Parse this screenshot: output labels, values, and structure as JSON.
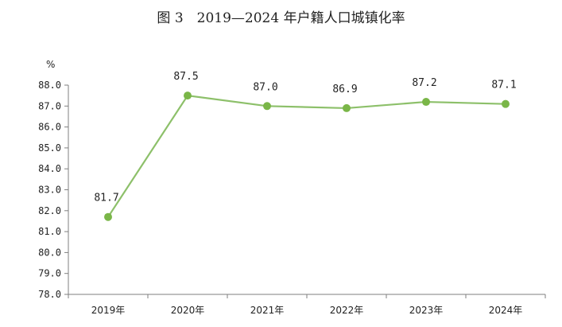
{
  "chart_data": {
    "type": "line",
    "title": "图 3　2019—2024 年户籍人口城镇化率",
    "y_unit": "%",
    "categories": [
      "2019年",
      "2020年",
      "2021年",
      "2022年",
      "2023年",
      "2024年"
    ],
    "series": [
      {
        "values": [
          81.7,
          87.5,
          87.0,
          86.9,
          87.2,
          87.1
        ]
      }
    ],
    "data_labels": [
      "81.7",
      "87.5",
      "87.0",
      "86.9",
      "87.2",
      "87.1"
    ],
    "ylim": [
      78.0,
      88.0
    ],
    "yticks": [
      "78.0",
      "79.0",
      "80.0",
      "81.0",
      "82.0",
      "83.0",
      "84.0",
      "85.0",
      "86.0",
      "87.0",
      "88.0"
    ],
    "grid": false,
    "legend": "none",
    "colors": {
      "line": "#8dc06a",
      "marker": "#7ab648",
      "axis": "#7f7f7f"
    }
  }
}
